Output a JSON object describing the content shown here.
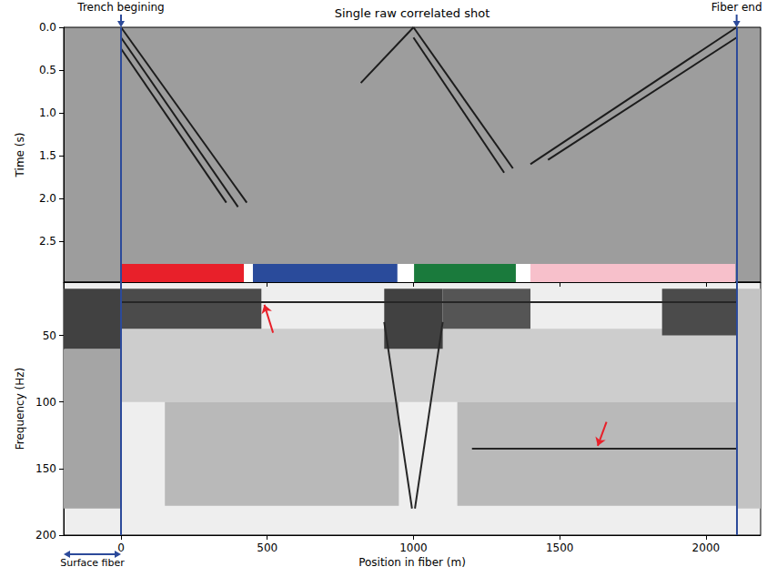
{
  "chart_data": [
    {
      "type": "line",
      "title": "Single raw correlated shot",
      "y_label": "Time (s)",
      "xlim": [
        -196,
        2187
      ],
      "ylim": [
        0,
        2.98
      ],
      "xticks": [
        0,
        500,
        1000,
        1500,
        2000
      ],
      "yticks": [
        {
          "value": 0,
          "label": "0.0"
        },
        {
          "value": 0.5,
          "label": "0.5"
        },
        {
          "value": 1,
          "label": "1.0"
        },
        {
          "value": 1.5,
          "label": "1.5"
        },
        {
          "value": 2,
          "label": "2.0"
        },
        {
          "value": 2.5,
          "label": "2.5"
        }
      ],
      "tick_labels": "y",
      "grid": false,
      "color": "#1c1c1c",
      "series": [
        {
          "x": [
            0,
            430
          ],
          "y": [
            0,
            2.05
          ]
        },
        {
          "x": [
            0,
            400
          ],
          "y": [
            0.12,
            2.1
          ]
        },
        {
          "x": [
            0,
            360
          ],
          "y": [
            0.25,
            2.05
          ]
        },
        {
          "x": [
            1000,
            1340
          ],
          "y": [
            0,
            1.65
          ]
        },
        {
          "x": [
            1000,
            1310
          ],
          "y": [
            0.12,
            1.7
          ]
        },
        {
          "x": [
            1000,
            820
          ],
          "y": [
            0,
            0.65
          ]
        },
        {
          "x": [
            2105,
            1400
          ],
          "y": [
            0,
            1.6
          ]
        },
        {
          "x": [
            2105,
            1460
          ],
          "y": [
            0.12,
            1.55
          ]
        }
      ],
      "segments": [
        {
          "start": 0,
          "end": 420,
          "color": "#e8202a"
        },
        {
          "start": 451,
          "end": 945,
          "color": "#2a4b9b"
        },
        {
          "start": 1002,
          "end": 1350,
          "color": "#1a7a3c"
        },
        {
          "start": 1400,
          "end": 2100,
          "color": "#f7c0cb"
        }
      ],
      "markers": [
        {
          "x": 0,
          "label": "Trench begining",
          "color": "#2c4a9a"
        },
        {
          "x": 2105,
          "label": "Fiber end",
          "color": "#2c4a9a"
        }
      ]
    },
    {
      "type": "heatmap",
      "y_label": "Frequency (Hz)",
      "x_label": "Position in fiber (m)",
      "xlim": [
        -196,
        2187
      ],
      "ylim": [
        10,
        200
      ],
      "xticks": [
        0,
        500,
        1000,
        1500,
        2000
      ],
      "yticks": [
        50,
        100,
        150,
        200
      ],
      "tick_labels": true,
      "grid": false,
      "color": "#262626",
      "energy_zones": [
        {
          "x": [
            0,
            2105
          ],
          "f": [
            45,
            100
          ],
          "level": 0.15
        },
        {
          "x": [
            150,
            950
          ],
          "f": [
            100,
            178
          ],
          "level": 0.25
        },
        {
          "x": [
            1150,
            2105
          ],
          "f": [
            100,
            178
          ],
          "level": 0.25
        },
        {
          "x": [
            2105,
            2187
          ],
          "f": [
            15,
            180
          ],
          "level": 0.2
        },
        {
          "x": [
            -196,
            0
          ],
          "f": [
            60,
            180
          ],
          "level": 0.35
        },
        {
          "x": [
            -196,
            0
          ],
          "f": [
            15,
            60
          ],
          "level": 0.85
        },
        {
          "x": [
            0,
            480
          ],
          "f": [
            15,
            45
          ],
          "level": 0.8
        },
        {
          "x": [
            900,
            1100
          ],
          "f": [
            15,
            60
          ],
          "level": 0.85
        },
        {
          "x": [
            1100,
            1400
          ],
          "f": [
            15,
            45
          ],
          "level": 0.75
        },
        {
          "x": [
            1850,
            2105
          ],
          "f": [
            15,
            50
          ],
          "level": 0.8
        }
      ],
      "lines": [
        {
          "x": [
            0,
            2105
          ],
          "y": [
            25,
            25
          ]
        },
        {
          "x": [
            1200,
            2105
          ],
          "y": [
            135,
            135
          ]
        },
        {
          "x": [
            900,
            995
          ],
          "y": [
            40,
            180
          ]
        },
        {
          "x": [
            1005,
            1100
          ],
          "y": [
            180,
            40
          ]
        }
      ],
      "arrows": [
        {
          "from": [
            520,
            48
          ],
          "to": [
            490,
            27
          ],
          "color": "#e8202a"
        },
        {
          "from": [
            1660,
            115
          ],
          "to": [
            1630,
            133
          ],
          "color": "#e8202a"
        }
      ],
      "annotations": [
        {
          "text": "Surface fiber",
          "x": [
            -196,
            0
          ],
          "color": "#2c4a9a"
        }
      ]
    }
  ]
}
